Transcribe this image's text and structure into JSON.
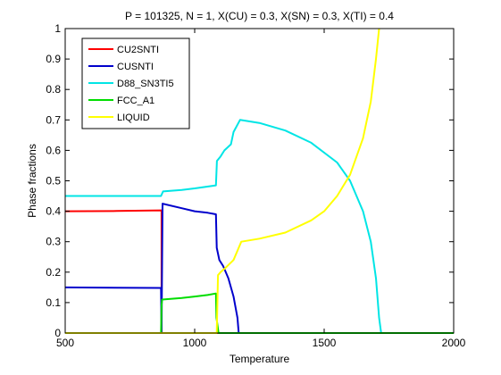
{
  "chart_data": {
    "type": "line",
    "title": "P = 101325, N = 1, X(CU) = 0.3, X(SN) = 0.3, X(TI) = 0.4",
    "xlabel": "Temperature",
    "ylabel": "Phase fractions",
    "xlim": [
      500,
      2000
    ],
    "ylim": [
      0,
      1
    ],
    "xticks": [
      "500",
      "1000",
      "1500",
      "2000"
    ],
    "xtick_values": [
      500,
      1000,
      1500,
      2000
    ],
    "yticks": [
      "0",
      "0.1",
      "0.2",
      "0.3",
      "0.4",
      "0.5",
      "0.6",
      "0.7",
      "0.8",
      "0.9",
      "1"
    ],
    "ytick_values": [
      0,
      0.1,
      0.2,
      0.3,
      0.4,
      0.5,
      0.6,
      0.7,
      0.8,
      0.9,
      1
    ],
    "grid": false,
    "legend_position": "top-left",
    "series": [
      {
        "name": "CU2SNTI",
        "color": "#ff0000",
        "x": [
          500,
          700,
          872,
          872,
          2000
        ],
        "y": [
          0.4,
          0.401,
          0.403,
          0,
          0
        ]
      },
      {
        "name": "CUSNTI",
        "color": "#0000cc",
        "x": [
          500,
          870,
          872,
          876,
          950,
          1000,
          1050,
          1082,
          1085,
          1095,
          1110,
          1130,
          1150,
          1165,
          1170,
          2000
        ],
        "y": [
          0.15,
          0.148,
          0.0,
          0.425,
          0.41,
          0.4,
          0.395,
          0.39,
          0.28,
          0.24,
          0.22,
          0.18,
          0.12,
          0.05,
          0.0,
          0.0
        ]
      },
      {
        "name": "D88_SN3TI5",
        "color": "#00e5e5",
        "x": [
          500,
          870,
          878,
          950,
          1000,
          1082,
          1086,
          1100,
          1115,
          1140,
          1150,
          1175,
          1250,
          1350,
          1450,
          1550,
          1600,
          1650,
          1680,
          1700,
          1712,
          1720,
          2000
        ],
        "y": [
          0.45,
          0.45,
          0.465,
          0.47,
          0.475,
          0.485,
          0.565,
          0.58,
          0.6,
          0.62,
          0.66,
          0.7,
          0.69,
          0.665,
          0.625,
          0.56,
          0.5,
          0.4,
          0.3,
          0.18,
          0.05,
          0.0,
          0.0
        ]
      },
      {
        "name": "FCC_A1",
        "color": "#00dd00",
        "x": [
          500,
          870,
          872,
          874,
          950,
          1000,
          1050,
          1082,
          1084,
          1092,
          1096,
          2000
        ],
        "y": [
          0.0,
          0.0,
          0.09,
          0.11,
          0.115,
          0.12,
          0.125,
          0.13,
          0.05,
          0.0,
          0.0,
          0.0
        ]
      },
      {
        "name": "LIQUID",
        "color": "#ffff00",
        "x": [
          500,
          1085,
          1090,
          1100,
          1120,
          1150,
          1170,
          1180,
          1250,
          1350,
          1450,
          1500,
          1550,
          1600,
          1650,
          1680,
          1700,
          1712
        ],
        "y": [
          0.0,
          0.0,
          0.19,
          0.2,
          0.215,
          0.24,
          0.28,
          0.3,
          0.31,
          0.33,
          0.37,
          0.4,
          0.45,
          0.52,
          0.64,
          0.76,
          0.9,
          1.0
        ]
      }
    ]
  }
}
